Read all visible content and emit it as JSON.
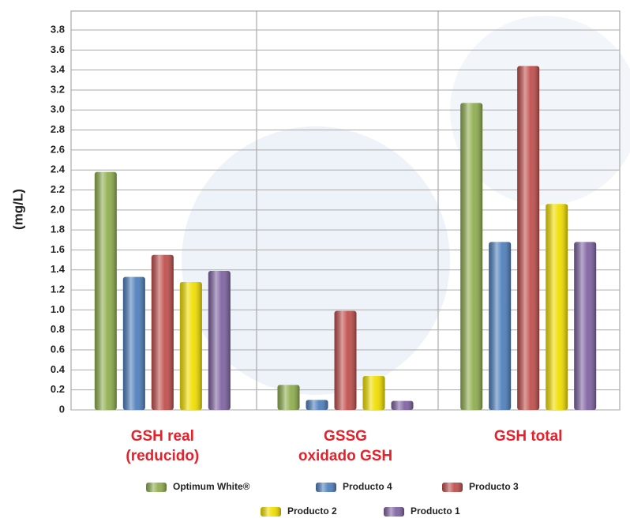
{
  "chart_data": {
    "type": "bar",
    "y_label": "(mg/L)",
    "categories": [
      "GSH real\n(reducido)",
      "GSSG\noxidado GSH",
      "GSH total"
    ],
    "series": [
      {
        "name": "Optimum White®",
        "color": "#8fae4f",
        "values": [
          2.38,
          0.25,
          3.07
        ]
      },
      {
        "name": "Producto 4",
        "color": "#4f80bd",
        "values": [
          1.33,
          0.1,
          1.68
        ]
      },
      {
        "name": "Producto 3",
        "color": "#c0504d",
        "values": [
          1.55,
          0.99,
          3.44
        ]
      },
      {
        "name": "Producto 2",
        "color": "#f0de00",
        "values": [
          1.28,
          0.34,
          2.06
        ]
      },
      {
        "name": "Producto 1",
        "color": "#8064a2",
        "values": [
          1.39,
          0.09,
          1.68
        ]
      }
    ],
    "ylim": [
      0,
      3.8
    ],
    "yticks": [
      0,
      0.2,
      0.4,
      0.6,
      0.8,
      {
        "value": 1,
        "label": "1.0"
      },
      1.2,
      1.4,
      1.6,
      1.8,
      {
        "value": 2,
        "label": "2.0"
      },
      2.2,
      2.4,
      2.6,
      2.8,
      {
        "value": 3,
        "label": "3.0"
      },
      3.2,
      3.4,
      3.6,
      3.8
    ],
    "grid": true
  }
}
